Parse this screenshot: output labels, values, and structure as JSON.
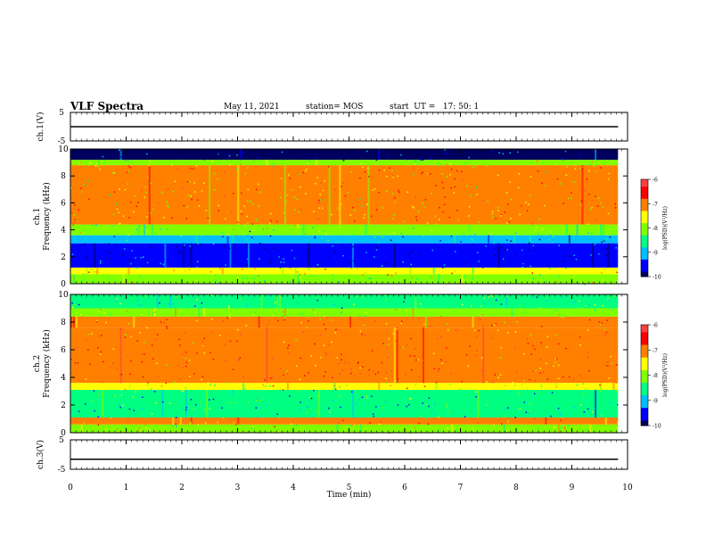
{
  "header": {
    "title": "VLF Spectra",
    "date": "May 11, 2021",
    "station": "station= MOS",
    "start": "start  UT =   17: 50: 1"
  },
  "chart_data": [
    {
      "type": "line",
      "panel": "ch1-voltage",
      "ylabel": "ch.1(V)",
      "ylim": [
        -5,
        5
      ],
      "yticks": [
        5,
        -5
      ],
      "series": [
        {
          "x": [
            0,
            9.83
          ],
          "y": [
            0,
            0
          ]
        }
      ]
    },
    {
      "type": "heatmap",
      "panel": "ch1-spectrogram",
      "ylabel": "ch.1\nFrequency (kHz)",
      "ylim": [
        0,
        10
      ],
      "yticks": [
        0,
        2,
        4,
        6,
        8,
        10
      ],
      "xlim": [
        0,
        9.83
      ],
      "colorbar": {
        "label": "log(PSD)(V²/Hz)",
        "range": [
          -10,
          -6
        ],
        "ticks": [
          -6,
          -7,
          -8,
          -9,
          -10
        ]
      },
      "bands": [
        {
          "from": 0.0,
          "to": 0.7,
          "level": -8.0
        },
        {
          "from": 0.7,
          "to": 1.2,
          "level": -7.6
        },
        {
          "from": 1.2,
          "to": 3.0,
          "level": -9.7
        },
        {
          "from": 3.0,
          "to": 3.6,
          "level": -9.1
        },
        {
          "from": 3.6,
          "to": 4.4,
          "level": -8.2
        },
        {
          "from": 4.4,
          "to": 8.8,
          "level": -7.2
        },
        {
          "from": 8.8,
          "to": 9.2,
          "level": -7.9
        },
        {
          "from": 9.2,
          "to": 10.0,
          "level": -9.8
        }
      ]
    },
    {
      "type": "heatmap",
      "panel": "ch2-spectrogram",
      "ylabel": "ch.2\nFrequency (kHz)",
      "ylim": [
        0,
        10
      ],
      "yticks": [
        0,
        2,
        4,
        6,
        8,
        10
      ],
      "xlim": [
        0,
        9.83
      ],
      "colorbar": {
        "label": "log(PSD)(V²/Hz)",
        "range": [
          -10,
          -6
        ],
        "ticks": [
          -6,
          -7,
          -8,
          -9,
          -10
        ]
      },
      "bands": [
        {
          "from": 0.0,
          "to": 0.6,
          "level": -7.8
        },
        {
          "from": 0.6,
          "to": 1.1,
          "level": -7.0
        },
        {
          "from": 1.1,
          "to": 3.1,
          "level": -8.6
        },
        {
          "from": 3.1,
          "to": 3.6,
          "level": -7.6
        },
        {
          "from": 3.6,
          "to": 7.6,
          "level": -6.8
        },
        {
          "from": 7.6,
          "to": 8.4,
          "level": -7.1
        },
        {
          "from": 8.4,
          "to": 9.0,
          "level": -7.8
        },
        {
          "from": 9.0,
          "to": 10.0,
          "level": -8.4
        }
      ]
    },
    {
      "type": "line",
      "panel": "ch3-voltage",
      "ylabel": "ch.3(V)",
      "ylim": [
        -5,
        5
      ],
      "yticks": [
        5,
        -5
      ],
      "xlabel": "Time  (min)",
      "xlim": [
        0,
        10
      ],
      "xticks": [
        0,
        1,
        2,
        3,
        4,
        5,
        6,
        7,
        8,
        9,
        10
      ],
      "series": [
        {
          "x": [
            0,
            9.83
          ],
          "y": [
            -1.6,
            -1.6
          ]
        }
      ]
    }
  ],
  "colors": {
    "scale": [
      "#000060",
      "#0000ff",
      "#00bfff",
      "#00ff80",
      "#80ff00",
      "#ffff00",
      "#ff8000",
      "#ff0000",
      "#ff4040"
    ]
  }
}
